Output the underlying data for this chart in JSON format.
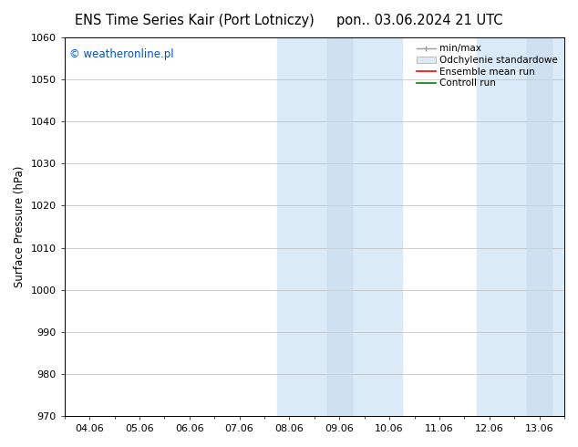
{
  "title_left": "ENS Time Series Kair (Port Lotniczy)",
  "title_right": "pon.. 03.06.2024 21 UTC",
  "ylabel": "Surface Pressure (hPa)",
  "watermark": "© weatheronline.pl",
  "watermark_color": "#0055cc",
  "ylim": [
    970,
    1060
  ],
  "yticks": [
    970,
    980,
    990,
    1000,
    1010,
    1020,
    1030,
    1040,
    1050,
    1060
  ],
  "xtick_labels": [
    "04.06",
    "05.06",
    "06.06",
    "07.06",
    "08.06",
    "09.06",
    "10.06",
    "11.06",
    "12.06",
    "13.06"
  ],
  "xtick_positions": [
    0,
    1,
    2,
    3,
    4,
    5,
    6,
    7,
    8,
    9
  ],
  "xlim": [
    -0.5,
    9.5
  ],
  "shade1_x0": 3.75,
  "shade1_x1": 6.25,
  "shade2_x0": 7.75,
  "shade2_x1": 9.5,
  "shade_color": "#daeaf7",
  "shade_inner1_x0": 4.75,
  "shade_inner1_x1": 5.25,
  "shade_inner2_x0": 8.75,
  "shade_inner2_x1": 9.25,
  "shade_inner_color": "#c5d9eb",
  "background_color": "#ffffff",
  "plot_bg_color": "#ffffff",
  "grid_color": "#bbbbbb",
  "title_fontsize": 10.5,
  "label_fontsize": 8.5,
  "tick_fontsize": 8,
  "watermark_fontsize": 8.5,
  "legend_fontsize": 7.5
}
